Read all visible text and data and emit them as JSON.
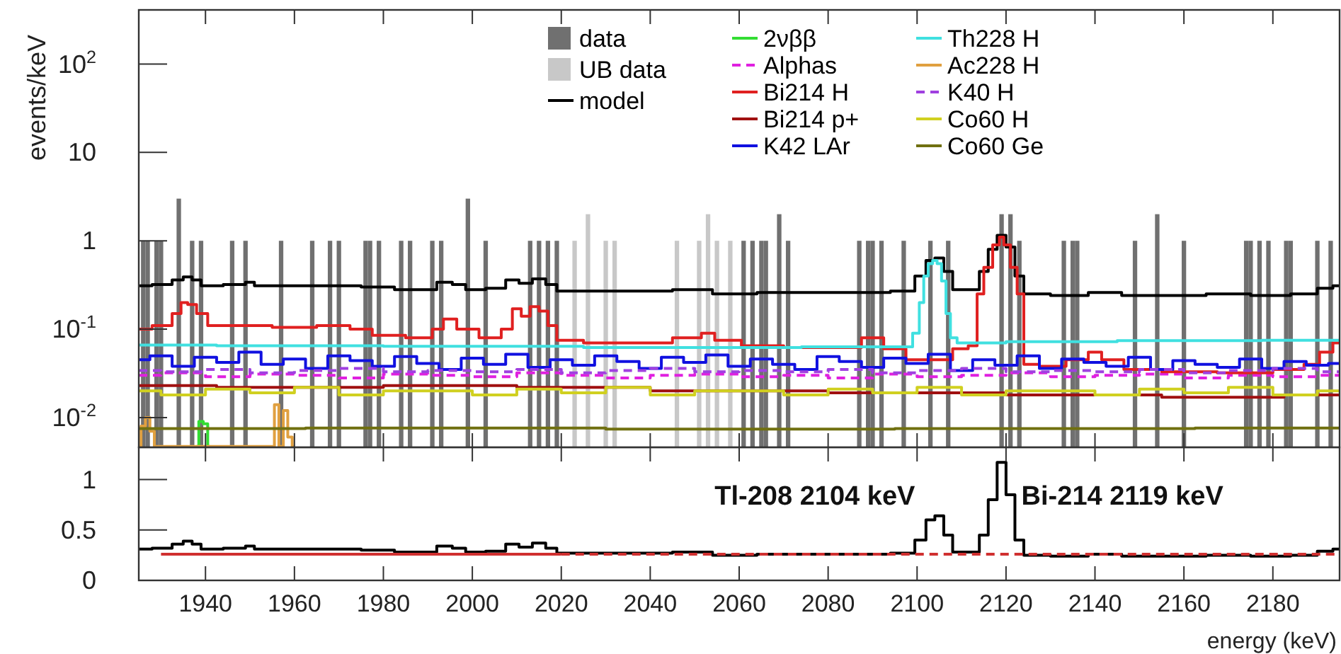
{
  "chart_data": [
    {
      "type": "step",
      "ylabel": "events/keV",
      "log": true,
      "legend": "top",
      "tick_labels": "y",
      "xlim": [
        1925,
        2195
      ],
      "xticks": [
        1940,
        1960,
        1980,
        2000,
        2020,
        2040,
        2060,
        2080,
        2100,
        2120,
        2140,
        2160,
        2180
      ],
      "ylim": [
        0.0046,
        410
      ],
      "yticks": [
        {
          "value": 0.01,
          "label": "10$^{-2}$"
        },
        {
          "value": 0.1,
          "label": "10$^{-1}$"
        },
        1,
        10,
        {
          "value": 100,
          "label": "10$^{2}$"
        }
      ],
      "series": [
        {
          "name": "data",
          "type": "bar",
          "color": "#707070",
          "x": [
            1926,
            1927,
            1929,
            1930,
            1934,
            1937,
            1939,
            1946,
            1949,
            1957,
            1964,
            1968,
            1970,
            1976,
            1977,
            1979,
            1984,
            1986,
            1991,
            1993,
            1999,
            2003,
            2013,
            2015,
            2017,
            2019,
            2061,
            2063,
            2065,
            2066,
            2069,
            2071,
            2087,
            2089,
            2090,
            2092,
            2097,
            2103,
            2107,
            2119,
            2121,
            2123,
            2133,
            2135,
            2136,
            2149,
            2154,
            2160,
            2174,
            2175,
            2177,
            2179,
            2183,
            2184,
            2190,
            2193
          ],
          "values": [
            1,
            1,
            1,
            1,
            3,
            1,
            1,
            1,
            1,
            1,
            1,
            1,
            1,
            1,
            1,
            1,
            1,
            1,
            1,
            1,
            3,
            1,
            1,
            1,
            1,
            1,
            1,
            1,
            1,
            1,
            2,
            1,
            1,
            1,
            1,
            1,
            1,
            1,
            1,
            2,
            2,
            1,
            1,
            1,
            1,
            1,
            2,
            1,
            1,
            1,
            1,
            1,
            1,
            1,
            1,
            1
          ]
        },
        {
          "name": "UB data",
          "type": "bar",
          "color": "#c8c8c8",
          "x": [
            2023,
            2026,
            2030,
            2032,
            2046,
            2051,
            2053,
            2055,
            2058
          ],
          "values": [
            1,
            2,
            1,
            1,
            1,
            1,
            2,
            1,
            1
          ]
        },
        {
          "name": "model",
          "color": "#000000",
          "x": [
            1925,
            1931,
            1934,
            1936,
            1938,
            1940,
            1948,
            1950,
            1952,
            1960,
            1970,
            1980,
            1985,
            1990,
            1994,
            1997,
            2000,
            2006,
            2009,
            2012,
            2015,
            2018,
            2020,
            2030,
            2040,
            2050,
            2058,
            2070,
            2080,
            2090,
            2098,
            2101,
            2103,
            2105,
            2107,
            2109,
            2113,
            2115,
            2117,
            2119,
            2121,
            2123,
            2125,
            2135,
            2142,
            2150,
            2160,
            2170,
            2180,
            2188,
            2192,
            2195
          ],
          "values": [
            0.31,
            0.32,
            0.36,
            0.39,
            0.36,
            0.31,
            0.32,
            0.34,
            0.31,
            0.31,
            0.31,
            0.3,
            0.28,
            0.28,
            0.34,
            0.32,
            0.28,
            0.29,
            0.36,
            0.33,
            0.37,
            0.32,
            0.27,
            0.27,
            0.27,
            0.28,
            0.25,
            0.26,
            0.26,
            0.26,
            0.27,
            0.4,
            0.6,
            0.64,
            0.45,
            0.28,
            0.28,
            0.45,
            0.8,
            1.15,
            0.85,
            0.4,
            0.25,
            0.24,
            0.26,
            0.24,
            0.24,
            0.25,
            0.24,
            0.25,
            0.29,
            0.31
          ]
        },
        {
          "name": "2νββ",
          "color": "#33dd33",
          "x": [
            1938,
            1939,
            1940,
            1941
          ],
          "values": [
            0.0047,
            0.009,
            0.0085,
            0.0047
          ]
        },
        {
          "name": "Alphas",
          "color": "#e020e0",
          "line_style": "dashed",
          "x": [
            1925,
            1935,
            1945,
            1955,
            1965,
            1975,
            1985,
            1995,
            2005,
            2015,
            2025,
            2035,
            2045,
            2055,
            2065,
            2075,
            2085,
            2095,
            2105,
            2115,
            2125,
            2135,
            2145,
            2155,
            2165,
            2175,
            2185,
            2195
          ],
          "values": [
            0.03,
            0.032,
            0.029,
            0.031,
            0.03,
            0.028,
            0.031,
            0.03,
            0.029,
            0.032,
            0.03,
            0.028,
            0.03,
            0.031,
            0.029,
            0.03,
            0.028,
            0.031,
            0.029,
            0.03,
            0.032,
            0.029,
            0.03,
            0.031,
            0.028,
            0.03,
            0.029,
            0.03
          ]
        },
        {
          "name": "Bi214 H",
          "color": "#e02020",
          "x": [
            1925,
            1931,
            1934,
            1935,
            1937,
            1939,
            1942,
            1950,
            1960,
            1970,
            1975,
            1980,
            1990,
            1992,
            1995,
            1998,
            2005,
            2008,
            2010,
            2012,
            2014,
            2016,
            2018,
            2020,
            2030,
            2040,
            2050,
            2053,
            2056,
            2065,
            2075,
            2085,
            2090,
            2095,
            2100,
            2106,
            2110,
            2113,
            2114,
            2116,
            2118,
            2119,
            2120,
            2122,
            2123,
            2125,
            2130,
            2137,
            2140,
            2143,
            2150,
            2160,
            2175,
            2185,
            2189,
            2192,
            2195
          ],
          "values": [
            0.1,
            0.11,
            0.15,
            0.2,
            0.19,
            0.15,
            0.11,
            0.11,
            0.105,
            0.11,
            0.1,
            0.085,
            0.08,
            0.1,
            0.13,
            0.1,
            0.08,
            0.1,
            0.17,
            0.14,
            0.18,
            0.16,
            0.11,
            0.075,
            0.07,
            0.07,
            0.08,
            0.09,
            0.075,
            0.065,
            0.062,
            0.062,
            0.08,
            0.06,
            0.045,
            0.045,
            0.06,
            0.065,
            0.25,
            0.5,
            0.9,
            1.1,
            0.9,
            0.5,
            0.25,
            0.04,
            0.038,
            0.045,
            0.055,
            0.045,
            0.035,
            0.033,
            0.032,
            0.035,
            0.04,
            0.055,
            0.07
          ]
        },
        {
          "name": "Bi214 p+",
          "color": "#a01010",
          "x": [
            1925,
            1960,
            2000,
            2020,
            2060,
            2100,
            2140,
            2170,
            2195
          ],
          "values": [
            0.023,
            0.022,
            0.023,
            0.022,
            0.02,
            0.019,
            0.018,
            0.017,
            0.018
          ]
        },
        {
          "name": "K42 LAr",
          "color": "#1010e0",
          "x": [
            1925,
            1930,
            1935,
            1940,
            1945,
            1950,
            1955,
            1960,
            1965,
            1970,
            1975,
            1980,
            1985,
            1990,
            1995,
            2000,
            2005,
            2010,
            2015,
            2020,
            2025,
            2030,
            2035,
            2040,
            2045,
            2050,
            2055,
            2060,
            2065,
            2070,
            2075,
            2080,
            2085,
            2090,
            2095,
            2100,
            2105,
            2110,
            2115,
            2120,
            2125,
            2130,
            2135,
            2140,
            2145,
            2150,
            2155,
            2160,
            2165,
            2170,
            2175,
            2180,
            2185,
            2190,
            2195
          ],
          "values": [
            0.045,
            0.05,
            0.038,
            0.048,
            0.042,
            0.055,
            0.04,
            0.046,
            0.036,
            0.05,
            0.044,
            0.038,
            0.049,
            0.041,
            0.035,
            0.047,
            0.04,
            0.052,
            0.037,
            0.045,
            0.039,
            0.05,
            0.043,
            0.036,
            0.048,
            0.042,
            0.051,
            0.038,
            0.046,
            0.04,
            0.035,
            0.049,
            0.043,
            0.037,
            0.047,
            0.041,
            0.052,
            0.034,
            0.045,
            0.039,
            0.05,
            0.036,
            0.046,
            0.042,
            0.038,
            0.048,
            0.035,
            0.044,
            0.04,
            0.037,
            0.046,
            0.036,
            0.043,
            0.039,
            0.041
          ]
        },
        {
          "name": "Th228 H",
          "color": "#40e0e0",
          "x": [
            1925,
            1960,
            2000,
            2050,
            2098,
            2100,
            2101,
            2102,
            2103,
            2104,
            2105,
            2106,
            2107,
            2108,
            2110,
            2130,
            2160,
            2195
          ],
          "values": [
            0.066,
            0.065,
            0.064,
            0.062,
            0.063,
            0.09,
            0.2,
            0.4,
            0.55,
            0.6,
            0.55,
            0.35,
            0.15,
            0.08,
            0.07,
            0.072,
            0.074,
            0.075
          ]
        },
        {
          "name": "Ac228 H",
          "color": "#e0a040",
          "x": [
            1925,
            1926,
            1927,
            1928,
            1929,
            1955,
            1956,
            1957,
            1958,
            1959,
            1960
          ],
          "values": [
            0.0047,
            0.008,
            0.01,
            0.007,
            0.0047,
            0.0047,
            0.014,
            0.0047,
            0.012,
            0.006,
            0.0047
          ]
        },
        {
          "name": "K40 H",
          "color": "#a040e0",
          "line_style": "dashed",
          "x": [
            1925,
            1935,
            1945,
            1955,
            1965,
            1975,
            1985,
            1995,
            2005,
            2015,
            2025,
            2035,
            2045,
            2055,
            2065,
            2075,
            2085,
            2095,
            2105,
            2115,
            2125,
            2135,
            2145,
            2155,
            2165,
            2175,
            2185,
            2195
          ],
          "values": [
            0.034,
            0.033,
            0.035,
            0.032,
            0.034,
            0.036,
            0.033,
            0.034,
            0.033,
            0.035,
            0.032,
            0.034,
            0.036,
            0.033,
            0.034,
            0.033,
            0.035,
            0.032,
            0.034,
            0.036,
            0.033,
            0.034,
            0.033,
            0.035,
            0.032,
            0.034,
            0.036,
            0.033
          ]
        },
        {
          "name": "Co60 H",
          "color": "#d0d020",
          "x": [
            1925,
            1935,
            1945,
            1955,
            1965,
            1975,
            1985,
            1995,
            2005,
            2015,
            2025,
            2035,
            2045,
            2055,
            2065,
            2075,
            2085,
            2095,
            2105,
            2115,
            2125,
            2135,
            2145,
            2155,
            2165,
            2175,
            2185,
            2195
          ],
          "values": [
            0.02,
            0.018,
            0.021,
            0.019,
            0.022,
            0.018,
            0.02,
            0.02,
            0.018,
            0.021,
            0.019,
            0.022,
            0.018,
            0.02,
            0.02,
            0.018,
            0.021,
            0.019,
            0.022,
            0.018,
            0.02,
            0.02,
            0.018,
            0.021,
            0.019,
            0.022,
            0.018,
            0.02
          ]
        },
        {
          "name": "Co60 Ge",
          "color": "#707010",
          "x": [
            1925,
            2000,
            2060,
            2130,
            2195
          ],
          "values": [
            0.0075,
            0.0076,
            0.0074,
            0.0075,
            0.0076
          ]
        }
      ]
    },
    {
      "type": "step",
      "xlabel": "energy (keV)",
      "xlim": [
        1925,
        2195
      ],
      "xticks": [
        1940,
        1960,
        1980,
        2000,
        2020,
        2040,
        2060,
        2080,
        2100,
        2120,
        2140,
        2160,
        2180
      ],
      "ylim": [
        0,
        1.32
      ],
      "yticks": [
        0,
        0.5,
        1
      ],
      "annotations": [
        {
          "text": "Tl-208 2104 keV",
          "x": 2104,
          "y": 0.64
        },
        {
          "text": "Bi-214 2119 keV",
          "x": 2119,
          "y": 1.17
        }
      ],
      "series": [
        {
          "color": "#000000",
          "x": [
            1925,
            1931,
            1934,
            1936,
            1938,
            1940,
            1948,
            1950,
            1952,
            1960,
            1970,
            1980,
            1985,
            1990,
            1994,
            1997,
            2000,
            2006,
            2009,
            2012,
            2015,
            2018,
            2020,
            2030,
            2040,
            2050,
            2058,
            2070,
            2080,
            2090,
            2098,
            2101,
            2103,
            2105,
            2107,
            2109,
            2113,
            2115,
            2117,
            2119,
            2121,
            2123,
            2125,
            2135,
            2142,
            2150,
            2160,
            2170,
            2180,
            2188,
            2192,
            2195
          ],
          "values": [
            0.31,
            0.32,
            0.36,
            0.39,
            0.36,
            0.31,
            0.32,
            0.34,
            0.31,
            0.31,
            0.31,
            0.3,
            0.28,
            0.28,
            0.34,
            0.32,
            0.28,
            0.29,
            0.36,
            0.33,
            0.37,
            0.32,
            0.27,
            0.27,
            0.27,
            0.28,
            0.25,
            0.26,
            0.26,
            0.26,
            0.27,
            0.4,
            0.6,
            0.64,
            0.45,
            0.28,
            0.28,
            0.45,
            0.8,
            1.17,
            0.85,
            0.4,
            0.25,
            0.24,
            0.26,
            0.24,
            0.24,
            0.25,
            0.24,
            0.25,
            0.29,
            0.31
          ]
        },
        {
          "color": "#d03030",
          "x": [
            1930,
            2020
          ],
          "values": [
            0.26,
            0.26
          ]
        },
        {
          "color": "#d03030",
          "line_style": "dashed",
          "x": [
            2020,
            2195
          ],
          "values": [
            0.26,
            0.26
          ]
        }
      ]
    }
  ]
}
